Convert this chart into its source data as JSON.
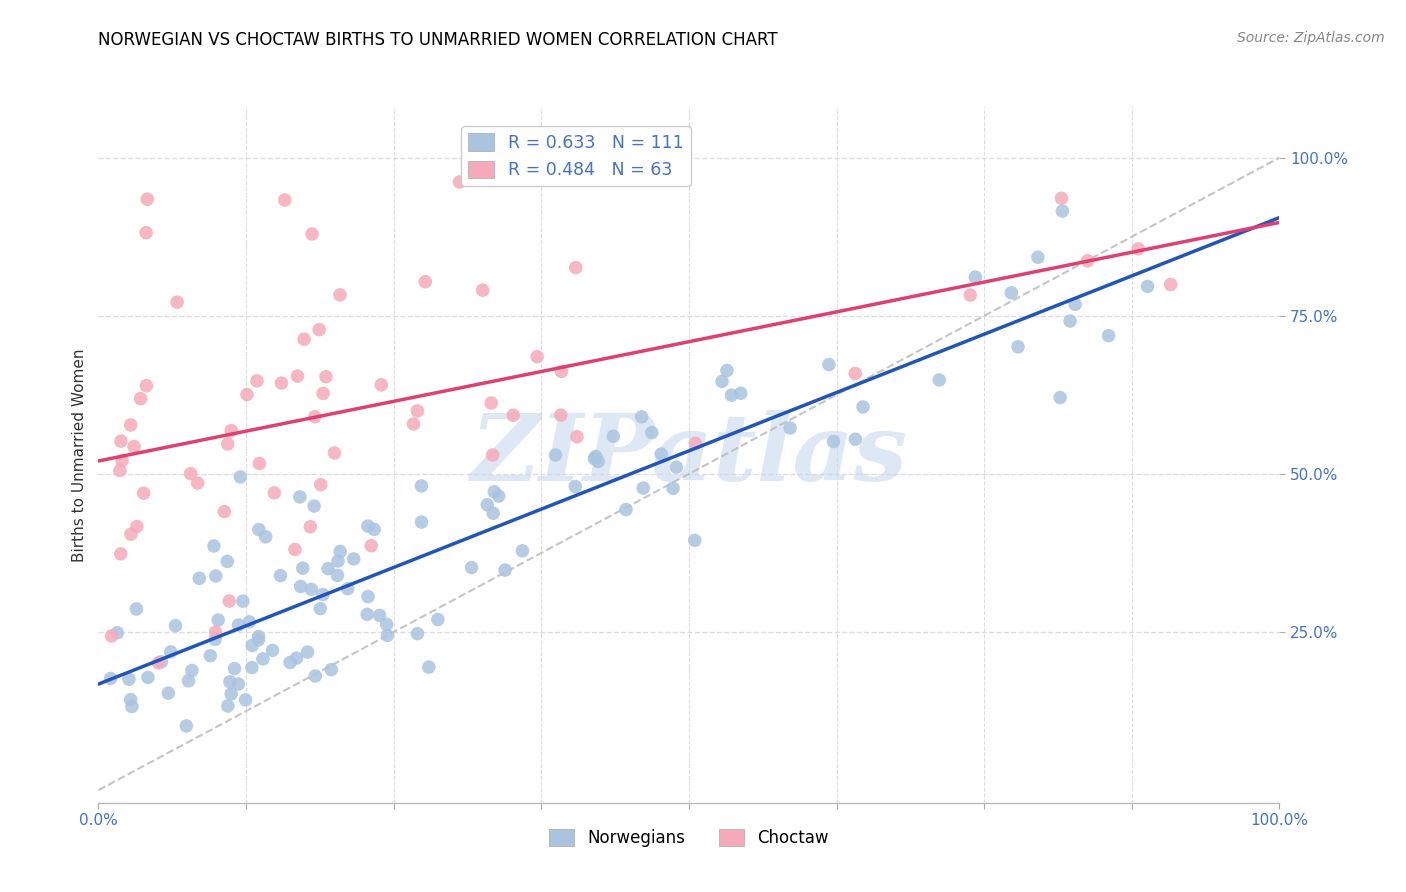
{
  "title": "NORWEGIAN VS CHOCTAW BIRTHS TO UNMARRIED WOMEN CORRELATION CHART",
  "source_text": "Source: ZipAtlas.com",
  "ylabel": "Births to Unmarried Women",
  "legend_r_nor": "R = 0.633",
  "legend_n_nor": "N = 111",
  "legend_r_cho": "R = 0.484",
  "legend_n_cho": "N = 63",
  "norwegian_color": "#aac4e0",
  "choctaw_color": "#f5aaba",
  "regression_norwegian_color": "#2255bb",
  "regression_choctaw_color": "#e04070",
  "diagonal_color": "#bbbbbb",
  "watermark_text": "ZIPatlas",
  "watermark_color": "#c8d8ee",
  "grid_color": "#dddddd",
  "axis_tick_color": "#4472c4",
  "figsize": [
    14.06,
    8.92
  ],
  "dpi": 100
}
